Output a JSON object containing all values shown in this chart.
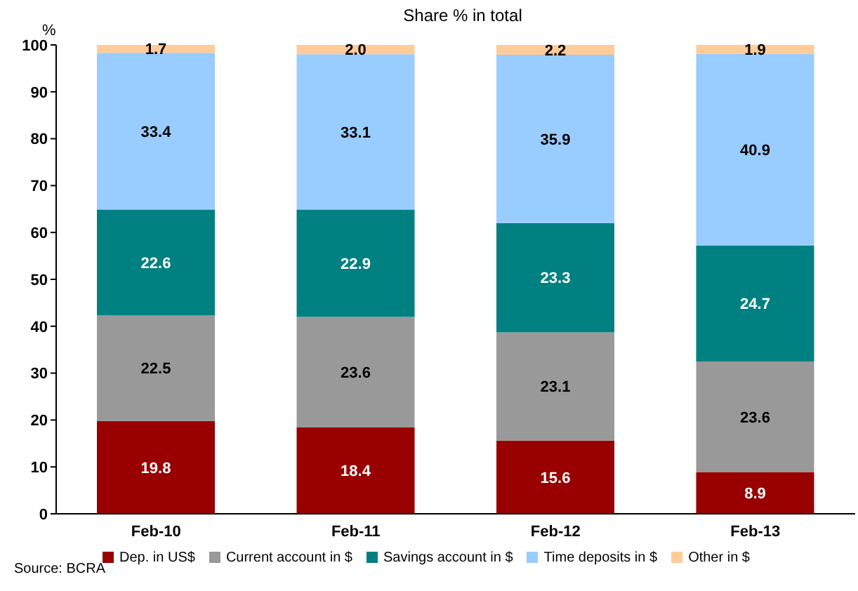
{
  "chart_data": {
    "type": "bar",
    "title": "Share % in total",
    "ylabel": "%",
    "stacked": true,
    "grid": false,
    "legend": "bottom",
    "categories": [
      "Feb-10",
      "Feb-11",
      "Feb-12",
      "Feb-13"
    ],
    "series": [
      {
        "name": "Dep. in US$",
        "color": "#990000",
        "values": [
          19.8,
          18.4,
          15.6,
          8.9
        ],
        "value_labels": [
          "19.8",
          "18.4",
          "15.6",
          "8.9"
        ]
      },
      {
        "name": "Current account in $",
        "color": "#999999",
        "values": [
          22.5,
          23.6,
          23.1,
          23.6
        ],
        "value_labels": [
          "22.5",
          "23.6",
          "23.1",
          "23.6"
        ]
      },
      {
        "name": "Savings account in $",
        "color": "#008080",
        "values": [
          22.6,
          22.9,
          23.3,
          24.7
        ],
        "value_labels": [
          "22.6",
          "22.9",
          "23.3",
          "24.7"
        ]
      },
      {
        "name": "Time deposits in $",
        "color": "#99ccff",
        "values": [
          33.4,
          33.1,
          35.9,
          40.9
        ],
        "value_labels": [
          "33.4",
          "33.1",
          "35.9",
          "40.9"
        ]
      },
      {
        "name": "Other in $",
        "color": "#ffcc99",
        "values": [
          1.7,
          2.0,
          2.2,
          1.9
        ],
        "value_labels": [
          "1.7",
          "2.0",
          "2.2",
          "1.9"
        ]
      }
    ],
    "ylim": [
      0,
      100
    ],
    "yticks": [
      0,
      10,
      20,
      30,
      40,
      50,
      60,
      70,
      80,
      90,
      100
    ],
    "annotations": [
      "Source: BCRA"
    ]
  }
}
